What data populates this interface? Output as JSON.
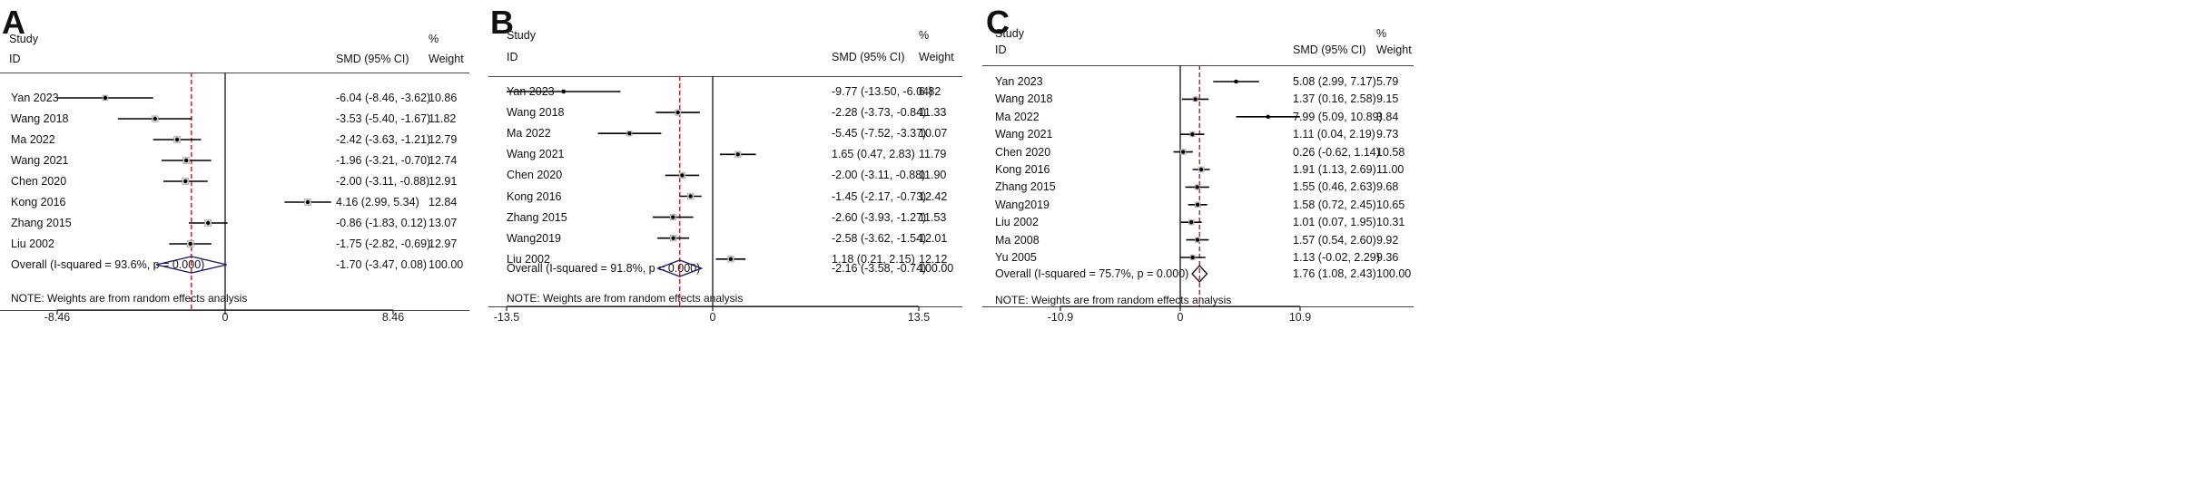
{
  "chart_data": [
    {
      "type": "forest",
      "panel_label": "A",
      "header": {
        "study": "Study",
        "id": "ID",
        "estimate": "SMD (95% CI)",
        "percent": "%",
        "weight": "Weight"
      },
      "xticks": [
        -8.46,
        0,
        8.46
      ],
      "xtick_labels": [
        "-8.46",
        "0",
        "8.46"
      ],
      "xlim": [
        -12.5,
        12.5
      ],
      "reference_line": -1.7,
      "studies": [
        {
          "label": "Yan 2023",
          "smd": -6.04,
          "lo": -8.46,
          "hi": -3.62,
          "ci_text": "-6.04 (-8.46, -3.62)",
          "weight": "10.86"
        },
        {
          "label": "Wang 2018",
          "smd": -3.53,
          "lo": -5.4,
          "hi": -1.67,
          "ci_text": "-3.53 (-5.40, -1.67)",
          "weight": "11.82"
        },
        {
          "label": "Ma 2022",
          "smd": -2.42,
          "lo": -3.63,
          "hi": -1.21,
          "ci_text": "-2.42 (-3.63, -1.21)",
          "weight": "12.79"
        },
        {
          "label": "Wang 2021",
          "smd": -1.96,
          "lo": -3.21,
          "hi": -0.7,
          "ci_text": "-1.96 (-3.21, -0.70)",
          "weight": "12.74"
        },
        {
          "label": "Chen 2020",
          "smd": -2.0,
          "lo": -3.11,
          "hi": -0.88,
          "ci_text": "-2.00 (-3.11, -0.88)",
          "weight": "12.91"
        },
        {
          "label": "Kong 2016",
          "smd": 4.16,
          "lo": 2.99,
          "hi": 5.34,
          "ci_text": "4.16 (2.99, 5.34)",
          "weight": "12.84"
        },
        {
          "label": "Zhang 2015",
          "smd": -0.86,
          "lo": -1.83,
          "hi": 0.12,
          "ci_text": "-0.86 (-1.83, 0.12)",
          "weight": "13.07"
        },
        {
          "label": "Liu 2002",
          "smd": -1.75,
          "lo": -2.82,
          "hi": -0.69,
          "ci_text": "-1.75 (-2.82, -0.69)",
          "weight": "12.97"
        }
      ],
      "overall": {
        "label": "Overall  (I-squared = 93.6%, p = 0.000)",
        "smd": -1.7,
        "lo": -3.47,
        "hi": 0.08,
        "ci_text": "-1.70 (-3.47, 0.08)",
        "weight": "100.00"
      },
      "note": "NOTE: Weights are from random effects analysis",
      "colors": {
        "diamond": "#1f1f6e",
        "reference": "#c0292b"
      }
    },
    {
      "type": "forest",
      "panel_label": "B",
      "header": {
        "study": "Study",
        "id": "ID",
        "estimate": "SMD (95% CI)",
        "percent": "%",
        "weight": "Weight"
      },
      "xticks": [
        -13.5,
        0,
        13.5
      ],
      "xtick_labels": [
        "-13.5",
        "0",
        "13.5"
      ],
      "xlim": [
        -18.5,
        18.5
      ],
      "reference_line": -2.16,
      "studies": [
        {
          "label": "Yan 2023",
          "smd": -9.77,
          "lo": -13.5,
          "hi": -6.04,
          "ci_text": "-9.77 (-13.50, -6.04)",
          "weight": "6.82"
        },
        {
          "label": "Wang 2018",
          "smd": -2.28,
          "lo": -3.73,
          "hi": -0.84,
          "ci_text": "-2.28 (-3.73, -0.84)",
          "weight": "11.33"
        },
        {
          "label": "Ma 2022",
          "smd": -5.45,
          "lo": -7.52,
          "hi": -3.37,
          "ci_text": "-5.45 (-7.52, -3.37)",
          "weight": "10.07"
        },
        {
          "label": "Wang 2021",
          "smd": 1.65,
          "lo": 0.47,
          "hi": 2.83,
          "ci_text": "1.65 (0.47, 2.83)",
          "weight": "11.79"
        },
        {
          "label": "Chen 2020",
          "smd": -2.0,
          "lo": -3.11,
          "hi": -0.88,
          "ci_text": "-2.00 (-3.11, -0.88)",
          "weight": "11.90"
        },
        {
          "label": "Kong 2016",
          "smd": -1.45,
          "lo": -2.17,
          "hi": -0.73,
          "ci_text": "-1.45 (-2.17, -0.73)",
          "weight": "12.42"
        },
        {
          "label": "Zhang 2015",
          "smd": -2.6,
          "lo": -3.93,
          "hi": -1.27,
          "ci_text": "-2.60 (-3.93, -1.27)",
          "weight": "11.53"
        },
        {
          "label": "Wang2019",
          "smd": -2.58,
          "lo": -3.62,
          "hi": -1.54,
          "ci_text": "-2.58 (-3.62, -1.54)",
          "weight": "12.01"
        },
        {
          "label": "Liu 2002",
          "smd": 1.18,
          "lo": 0.21,
          "hi": 2.15,
          "ci_text": "1.18 (0.21, 2.15)",
          "weight": "12.12"
        }
      ],
      "overall": {
        "label": "Overall  (I-squared = 91.8%, p = 0.000)",
        "smd": -2.16,
        "lo": -3.58,
        "hi": -0.74,
        "ci_text": "-2.16 (-3.58, -0.74)",
        "weight": "100.00"
      },
      "note": "NOTE: Weights are from random effects analysis",
      "colors": {
        "diamond": "#1f1f6e",
        "reference": "#c0292b"
      }
    },
    {
      "type": "forest",
      "panel_label": "C",
      "header": {
        "study": "Study",
        "id": "ID",
        "estimate": "SMD (95% CI)",
        "percent": "%",
        "weight": "Weight"
      },
      "xticks": [
        -10.9,
        0,
        10.9
      ],
      "xtick_labels": [
        "-10.9",
        "0",
        "10.9"
      ],
      "xlim": [
        -18.2,
        18.2
      ],
      "reference_line": 1.76,
      "studies": [
        {
          "label": "Yan 2023",
          "smd": 5.08,
          "lo": 2.99,
          "hi": 7.17,
          "ci_text": "5.08 (2.99, 7.17)",
          "weight": "5.79"
        },
        {
          "label": "Wang 2018",
          "smd": 1.37,
          "lo": 0.16,
          "hi": 2.58,
          "ci_text": "1.37 (0.16, 2.58)",
          "weight": "9.15"
        },
        {
          "label": "Ma 2022",
          "smd": 7.99,
          "lo": 5.09,
          "hi": 10.89,
          "ci_text": "7.99 (5.09, 10.89)",
          "weight": "3.84"
        },
        {
          "label": "Wang 2021",
          "smd": 1.11,
          "lo": 0.04,
          "hi": 2.19,
          "ci_text": "1.11 (0.04, 2.19)",
          "weight": "9.73"
        },
        {
          "label": "Chen 2020",
          "smd": 0.26,
          "lo": -0.62,
          "hi": 1.14,
          "ci_text": "0.26 (-0.62, 1.14)",
          "weight": "10.58"
        },
        {
          "label": "Kong 2016",
          "smd": 1.91,
          "lo": 1.13,
          "hi": 2.69,
          "ci_text": "1.91 (1.13, 2.69)",
          "weight": "11.00"
        },
        {
          "label": "Zhang 2015",
          "smd": 1.55,
          "lo": 0.46,
          "hi": 2.63,
          "ci_text": "1.55 (0.46, 2.63)",
          "weight": "9.68"
        },
        {
          "label": "Wang2019",
          "smd": 1.58,
          "lo": 0.72,
          "hi": 2.45,
          "ci_text": "1.58 (0.72, 2.45)",
          "weight": "10.65"
        },
        {
          "label": "Liu 2002",
          "smd": 1.01,
          "lo": 0.07,
          "hi": 1.95,
          "ci_text": "1.01 (0.07, 1.95)",
          "weight": "10.31"
        },
        {
          "label": "Ma 2008",
          "smd": 1.57,
          "lo": 0.54,
          "hi": 2.6,
          "ci_text": "1.57 (0.54, 2.60)",
          "weight": "9.92"
        },
        {
          "label": "Yu 2005",
          "smd": 1.13,
          "lo": -0.02,
          "hi": 2.29,
          "ci_text": "1.13 (-0.02, 2.29)",
          "weight": "9.36"
        }
      ],
      "overall": {
        "label": "Overall  (I-squared = 75.7%, p = 0.000)",
        "smd": 1.76,
        "lo": 1.08,
        "hi": 2.43,
        "ci_text": "1.76 (1.08, 2.43)",
        "weight": "100.00"
      },
      "note": "NOTE: Weights are from random effects analysis",
      "colors": {
        "diamond": "#1a1a1a",
        "reference": "#c0292b"
      }
    }
  ]
}
